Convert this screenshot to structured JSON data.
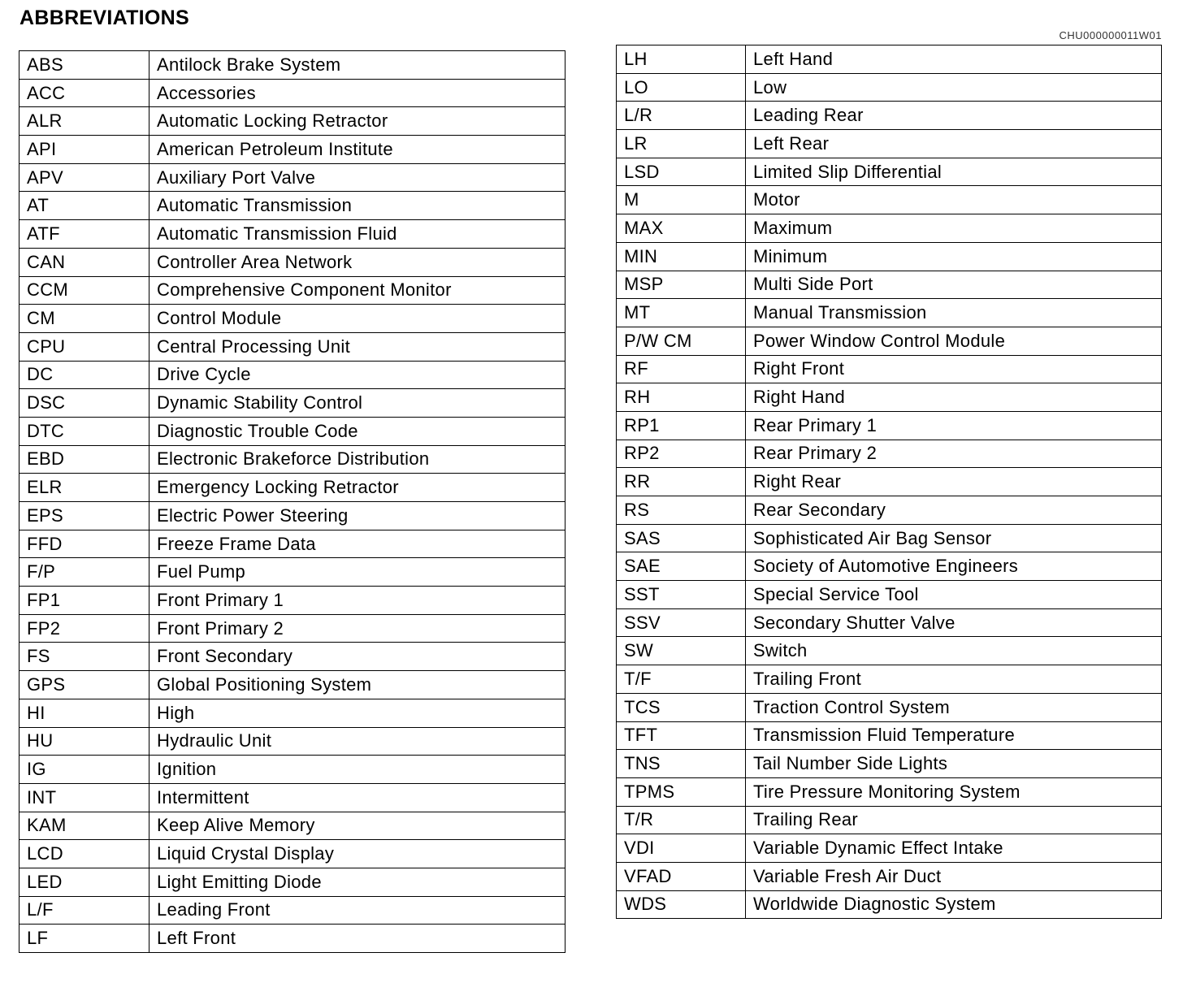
{
  "title": "ABBREVIATIONS",
  "code": "CHU000000011W01",
  "left": [
    [
      "ABS",
      "Antilock Brake System"
    ],
    [
      "ACC",
      "Accessories"
    ],
    [
      "ALR",
      "Automatic Locking Retractor"
    ],
    [
      "API",
      "American Petroleum Institute"
    ],
    [
      "APV",
      "Auxiliary Port Valve"
    ],
    [
      "AT",
      "Automatic Transmission"
    ],
    [
      "ATF",
      "Automatic Transmission Fluid"
    ],
    [
      "CAN",
      "Controller Area Network"
    ],
    [
      "CCM",
      "Comprehensive Component Monitor"
    ],
    [
      "CM",
      "Control Module"
    ],
    [
      "CPU",
      "Central Processing Unit"
    ],
    [
      "DC",
      "Drive Cycle"
    ],
    [
      "DSC",
      "Dynamic Stability Control"
    ],
    [
      "DTC",
      "Diagnostic Trouble Code"
    ],
    [
      "EBD",
      "Electronic Brakeforce Distribution"
    ],
    [
      "ELR",
      "Emergency Locking Retractor"
    ],
    [
      "EPS",
      "Electric Power Steering"
    ],
    [
      "FFD",
      "Freeze Frame Data"
    ],
    [
      "F/P",
      "Fuel Pump"
    ],
    [
      "FP1",
      "Front Primary 1"
    ],
    [
      "FP2",
      "Front Primary 2"
    ],
    [
      "FS",
      "Front Secondary"
    ],
    [
      "GPS",
      "Global Positioning System"
    ],
    [
      "HI",
      "High"
    ],
    [
      "HU",
      "Hydraulic Unit"
    ],
    [
      "IG",
      "Ignition"
    ],
    [
      "INT",
      "Intermittent"
    ],
    [
      "KAM",
      "Keep Alive Memory"
    ],
    [
      "LCD",
      "Liquid Crystal Display"
    ],
    [
      "LED",
      "Light Emitting Diode"
    ],
    [
      "L/F",
      "Leading Front"
    ],
    [
      "LF",
      "Left Front"
    ]
  ],
  "right": [
    [
      "LH",
      "Left Hand"
    ],
    [
      "LO",
      "Low"
    ],
    [
      "L/R",
      "Leading Rear"
    ],
    [
      "LR",
      "Left Rear"
    ],
    [
      "LSD",
      "Limited Slip Differential"
    ],
    [
      "M",
      "Motor"
    ],
    [
      "MAX",
      "Maximum"
    ],
    [
      "MIN",
      "Minimum"
    ],
    [
      "MSP",
      "Multi Side Port"
    ],
    [
      "MT",
      "Manual Transmission"
    ],
    [
      "P/W CM",
      "Power Window Control Module"
    ],
    [
      "RF",
      "Right Front"
    ],
    [
      "RH",
      "Right Hand"
    ],
    [
      "RP1",
      "Rear Primary 1"
    ],
    [
      "RP2",
      "Rear Primary 2"
    ],
    [
      "RR",
      "Right Rear"
    ],
    [
      "RS",
      "Rear Secondary"
    ],
    [
      "SAS",
      "Sophisticated Air Bag Sensor"
    ],
    [
      "SAE",
      "Society of Automotive Engineers"
    ],
    [
      "SST",
      "Special Service Tool"
    ],
    [
      "SSV",
      "Secondary Shutter Valve"
    ],
    [
      "SW",
      "Switch"
    ],
    [
      "T/F",
      "Trailing Front"
    ],
    [
      "TCS",
      "Traction Control System"
    ],
    [
      "TFT",
      "Transmission Fluid Temperature"
    ],
    [
      "TNS",
      "Tail Number Side Lights"
    ],
    [
      "TPMS",
      "Tire Pressure Monitoring System"
    ],
    [
      "T/R",
      "Trailing Rear"
    ],
    [
      "VDI",
      "Variable Dynamic Effect Intake"
    ],
    [
      "VFAD",
      "Variable Fresh Air Duct"
    ],
    [
      "WDS",
      "Worldwide Diagnostic System"
    ]
  ]
}
